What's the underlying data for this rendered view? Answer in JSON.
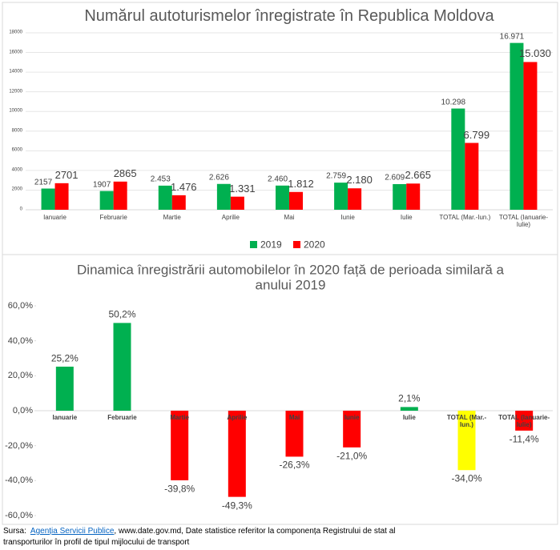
{
  "chart_data": [
    {
      "type": "bar",
      "title": "Numărul autoturismelor înregistrate în Republica Moldova",
      "categories": [
        "Ianuarie",
        "Februarie",
        "Martie",
        "Aprilie",
        "Mai",
        "Iunie",
        "Iulie",
        "TOTAL (Mar.-Iun.)",
        "TOTAL (Ianuarie-Iulie)"
      ],
      "series": [
        {
          "name": "2019",
          "color": "#00b050",
          "values": [
            2157,
            1907,
            2453,
            2626,
            2460,
            2759,
            2609,
            10298,
            16971
          ],
          "value_labels": [
            "2157",
            "1907",
            "2.453",
            "2.626",
            "2.460",
            "2.759",
            "2.609",
            "10.298",
            "16.971"
          ]
        },
        {
          "name": "2020",
          "color": "#ff0000",
          "values": [
            2701,
            2865,
            1476,
            1331,
            1812,
            2180,
            2665,
            6799,
            15030
          ],
          "value_labels": [
            "2701",
            "2865",
            "1.476",
            "1.331",
            "1.812",
            "2.180",
            "2.665",
            "6.799",
            "15.030"
          ]
        }
      ],
      "ylim": [
        0,
        18000
      ],
      "yticks": [
        0,
        2000,
        4000,
        6000,
        8000,
        10000,
        12000,
        14000,
        16000,
        18000
      ],
      "grid": true,
      "legend": "bottom"
    },
    {
      "type": "bar",
      "title": "Dinamica înregistrării automobilelor în 2020 față de perioada similară a anului 2019",
      "categories": [
        "Ianuarie",
        "Februarie",
        "Martie",
        "Aprilie",
        "Mai",
        "Iunie",
        "Iulie",
        "TOTAL (Mar.-Iun.)",
        "TOTAL (Ianuarie-Iulie)"
      ],
      "values": [
        25.2,
        50.2,
        -39.8,
        -49.3,
        -26.3,
        -21.0,
        2.1,
        -34.0,
        -11.4
      ],
      "value_labels": [
        "25,2%",
        "50,2%",
        "-39,8%",
        "-49,3%",
        "-26,3%",
        "-21,0%",
        "2,1%",
        "-34,0%",
        "-11,4%"
      ],
      "colors": [
        "#00b050",
        "#00b050",
        "#ff0000",
        "#ff0000",
        "#ff0000",
        "#ff0000",
        "#00b050",
        "#ffff00",
        "#ff0000"
      ],
      "ylim": [
        -60,
        60
      ],
      "yticks": [
        {
          "value": -60,
          "label": "-60,0%"
        },
        {
          "value": -40,
          "label": "-40,0%"
        },
        {
          "value": -20,
          "label": "-20,0%"
        },
        {
          "value": 0,
          "label": "0,0%"
        },
        {
          "value": 20,
          "label": "20,0%"
        },
        {
          "value": 40,
          "label": "40,0%"
        },
        {
          "value": 60,
          "label": "60,0%"
        }
      ],
      "grid": false
    }
  ],
  "source": {
    "prefix": "Sursa:",
    "link": "Agenția Servicii Publice",
    "text": ", www.date.gov.md, Date statistice referitor la componența Registrului de stat al transporturilor în profil de tipul mijlocului de transport"
  }
}
